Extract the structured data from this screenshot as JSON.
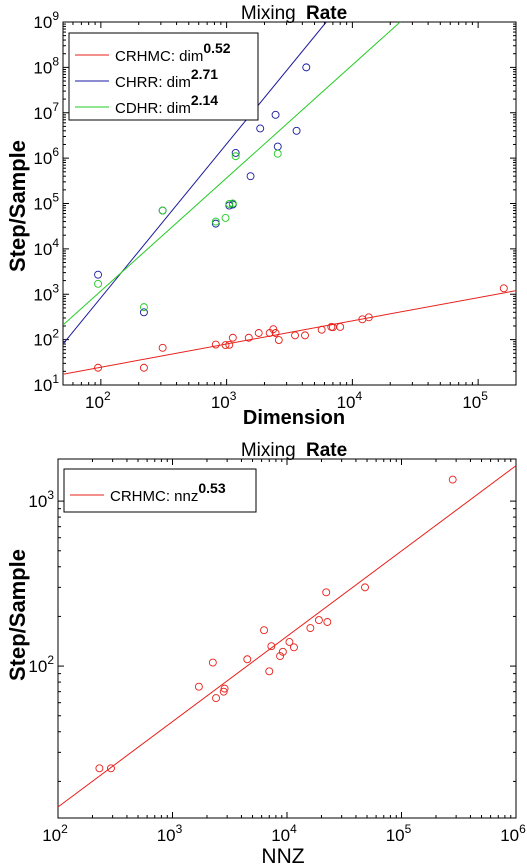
{
  "chart_data": [
    {
      "type": "scatter",
      "title_prefix": "Mixing",
      "title_bold": "Rate",
      "xlabel": "Dimension",
      "ylabel": "Step/Sample",
      "xscale": "log",
      "yscale": "log",
      "xlim": [
        50,
        200000
      ],
      "ylim": [
        10,
        1000000000
      ],
      "grid": false,
      "legend_position": "top-left",
      "x_tick_labels": [
        {
          "base": "10",
          "exp": "2",
          "value": 100
        },
        {
          "base": "10",
          "exp": "3",
          "value": 1000
        },
        {
          "base": "10",
          "exp": "4",
          "value": 10000
        },
        {
          "base": "10",
          "exp": "5",
          "value": 100000
        }
      ],
      "y_tick_labels": [
        {
          "base": "10",
          "exp": "1",
          "value": 10
        },
        {
          "base": "10",
          "exp": "2",
          "value": 100
        },
        {
          "base": "10",
          "exp": "3",
          "value": 1000
        },
        {
          "base": "10",
          "exp": "4",
          "value": 10000
        },
        {
          "base": "10",
          "exp": "5",
          "value": 100000
        },
        {
          "base": "10",
          "exp": "6",
          "value": 1000000
        },
        {
          "base": "10",
          "exp": "7",
          "value": 10000000
        },
        {
          "base": "10",
          "exp": "8",
          "value": 100000000
        },
        {
          "base": "10",
          "exp": "9",
          "value": 1000000000
        }
      ],
      "series": [
        {
          "name": "CRHMC: dim",
          "exp_label": "0.52",
          "color": "#e8201a",
          "fit_line": [
            [
              50,
              17.3
            ],
            [
              200000,
              1200
            ]
          ],
          "points": [
            [
              95,
              24
            ],
            [
              220,
              24
            ],
            [
              310,
              66
            ],
            [
              820,
              78
            ],
            [
              980,
              76
            ],
            [
              1050,
              77
            ],
            [
              1120,
              110
            ],
            [
              1500,
              110
            ],
            [
              1800,
              140
            ],
            [
              2200,
              140
            ],
            [
              2350,
              170
            ],
            [
              2450,
              140
            ],
            [
              2600,
              98
            ],
            [
              3500,
              124
            ],
            [
              4200,
              124
            ],
            [
              5700,
              165
            ],
            [
              6800,
              190
            ],
            [
              7000,
              188
            ],
            [
              8000,
              190
            ],
            [
              12000,
              280
            ],
            [
              13500,
              310
            ],
            [
              160000,
              1350
            ]
          ]
        },
        {
          "name": "CHRR: dim",
          "exp_label": "2.71",
          "color": "#1a1aa0",
          "fit_line": [
            [
              50,
              80
            ],
            [
              6200,
              1000000000
            ]
          ],
          "points": [
            [
              95,
              2700
            ],
            [
              220,
              400
            ],
            [
              310,
              70000
            ],
            [
              820,
              36000
            ],
            [
              1050,
              90000
            ],
            [
              1120,
              95000
            ],
            [
              1180,
              1300000
            ],
            [
              1550,
              400000
            ],
            [
              1850,
              4500000
            ],
            [
              2450,
              9000000
            ],
            [
              2550,
              1800000
            ],
            [
              3600,
              4000000
            ],
            [
              4300,
              100000000
            ]
          ]
        },
        {
          "name": "CDHR: dim",
          "exp_label": "2.14",
          "color": "#22cc22",
          "fit_line": [
            [
              50,
              210
            ],
            [
              24000,
              1000000000
            ]
          ],
          "points": [
            [
              95,
              1700
            ],
            [
              220,
              520
            ],
            [
              310,
              70000
            ],
            [
              820,
              40000
            ],
            [
              980,
              48000
            ],
            [
              1050,
              98000
            ],
            [
              1120,
              100000
            ],
            [
              1180,
              1100000
            ],
            [
              2550,
              1250000
            ]
          ]
        }
      ]
    },
    {
      "type": "scatter",
      "title_prefix": "Mixing",
      "title_bold": "Rate",
      "xlabel": "NNZ",
      "ylabel": "Step/Sample",
      "xscale": "log",
      "yscale": "log",
      "xlim": [
        100,
        1000000
      ],
      "ylim": [
        12,
        1800
      ],
      "grid": false,
      "legend_position": "top-left",
      "x_tick_labels": [
        {
          "base": "10",
          "exp": "2",
          "value": 100
        },
        {
          "base": "10",
          "exp": "3",
          "value": 1000
        },
        {
          "base": "10",
          "exp": "4",
          "value": 10000
        },
        {
          "base": "10",
          "exp": "5",
          "value": 100000
        },
        {
          "base": "10",
          "exp": "6",
          "value": 1000000
        }
      ],
      "y_tick_labels": [
        {
          "base": "10",
          "exp": "2",
          "value": 100
        },
        {
          "base": "10",
          "exp": "3",
          "value": 1000
        }
      ],
      "series": [
        {
          "name": "CRHMC: nnz",
          "exp_label": "0.53",
          "color": "#e8201a",
          "fit_line": [
            [
              100,
              14
            ],
            [
              1000000,
              1640
            ]
          ],
          "points": [
            [
              230,
              24
            ],
            [
              290,
              24
            ],
            [
              1700,
              75
            ],
            [
              2250,
              105
            ],
            [
              2400,
              64
            ],
            [
              2800,
              70
            ],
            [
              2850,
              73
            ],
            [
              4500,
              110
            ],
            [
              6300,
              165
            ],
            [
              7000,
              93
            ],
            [
              7300,
              132
            ],
            [
              8700,
              115
            ],
            [
              9200,
              122
            ],
            [
              10500,
              140
            ],
            [
              11500,
              130
            ],
            [
              16000,
              170
            ],
            [
              19000,
              190
            ],
            [
              22000,
              280
            ],
            [
              22500,
              185
            ],
            [
              48000,
              300
            ],
            [
              280000,
              1350
            ]
          ]
        }
      ]
    }
  ]
}
